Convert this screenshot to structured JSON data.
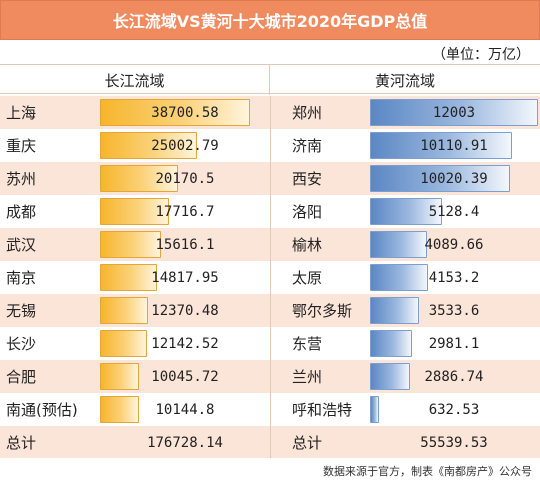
{
  "title": "长江流域VS黄河十大城市2020年GDP总值",
  "unit": "（单位：万亿）",
  "headers": {
    "left": "长江流域",
    "right": "黄河流域"
  },
  "chart_data": {
    "type": "bar",
    "title": "长江流域VS黄河十大城市2020年GDP总值",
    "series": [
      {
        "name": "长江流域",
        "color": "#f7b52c",
        "categories": [
          "上海",
          "重庆",
          "苏州",
          "成都",
          "武汉",
          "南京",
          "无锡",
          "长沙",
          "合肥",
          "南通(预估)"
        ],
        "labels": [
          "38700.58",
          "25002.79",
          "20170.5",
          "17716.7",
          "15616.1",
          "14817.95",
          "12370.48",
          "12142.52",
          "10045.72",
          "10144.8"
        ],
        "values": [
          38700.58,
          25002.79,
          20170.5,
          17716.7,
          15616.1,
          14817.95,
          12370.48,
          12142.52,
          10045.72,
          10144.8
        ],
        "total_label": "总计",
        "total": "176728.14"
      },
      {
        "name": "黄河流域",
        "color": "#5b87c4",
        "categories": [
          "郑州",
          "济南",
          "西安",
          "洛阳",
          "榆林",
          "太原",
          "鄂尔多斯",
          "东营",
          "兰州",
          "呼和浩特"
        ],
        "labels": [
          "12003",
          "10110.91",
          "10020.39",
          "5128.4",
          "4089.66",
          "4153.2",
          "3533.6",
          "2981.1",
          "2886.74",
          "632.53"
        ],
        "values": [
          12003,
          10110.91,
          10020.39,
          5128.4,
          4089.66,
          4153.2,
          3533.6,
          2981.1,
          2886.74,
          632.53
        ],
        "total_label": "总计",
        "total": "55539.53"
      }
    ]
  },
  "footer": "数据来源于官方，制表《南都房产》公众号"
}
